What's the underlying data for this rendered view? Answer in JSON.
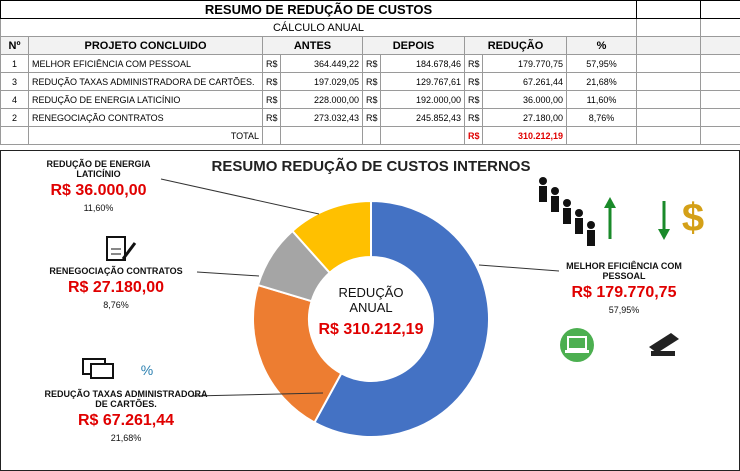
{
  "table": {
    "title": "RESUMO DE REDUÇÃO DE CUSTOS",
    "subtitle": "CÁLCULO ANUAL",
    "headers": [
      "Nº",
      "PROJETO CONCLUIDO",
      "ANTES",
      "DEPOIS",
      "REDUÇÃO",
      "%"
    ],
    "currency": "R$",
    "rows": [
      [
        "1",
        "MELHOR EFICIÊNCIA COM PESSOAL",
        "364.449,22",
        "184.678,46",
        "179.770,75",
        "57,95%"
      ],
      [
        "3",
        "REDUÇÃO TAXAS ADMINISTRADORA DE CARTÕES.",
        "197.029,05",
        "129.767,61",
        "67.261,44",
        "21,68%"
      ],
      [
        "4",
        "REDUÇÃO DE ENERGIA LATICÍNIO",
        "228.000,00",
        "192.000,00",
        "36.000,00",
        "11,60%"
      ],
      [
        "2",
        "RENEGOCIAÇÃO CONTRATOS",
        "273.032,43",
        "245.852,43",
        "27.180,00",
        "8,76%"
      ]
    ],
    "total_label": "TOTAL",
    "total_value": "310.212,19"
  },
  "chart_data": {
    "type": "donut",
    "title": "RESUMO REDUÇÃO DE CUSTOS INTERNOS",
    "center_label": "REDUÇÃO ANUAL",
    "center_value": "R$ 310.212,19",
    "categories": [
      "MELHOR EFICIÊNCIA COM PESSOAL",
      "REDUÇÃO TAXAS ADMINISTRADORA DE CARTÕES.",
      "RENEGOCIAÇÃO CONTRATOS",
      "REDUÇÃO DE ENERGIA LATICÍNIO"
    ],
    "values": [
      57.95,
      21.68,
      8.76,
      11.6
    ],
    "value_labels": [
      "57,95%",
      "21,68%",
      "8,76%",
      "11,60%"
    ],
    "amounts": [
      179770.75,
      67261.44,
      27180.0,
      36000.0
    ],
    "amount_labels": [
      "R$ 179.770,75",
      "R$ 67.261,44",
      "R$ 27.180,00",
      "R$ 36.000,00"
    ],
    "colors": [
      "#4472c4",
      "#ed7d31",
      "#a5a5a5",
      "#ffc000"
    ]
  }
}
